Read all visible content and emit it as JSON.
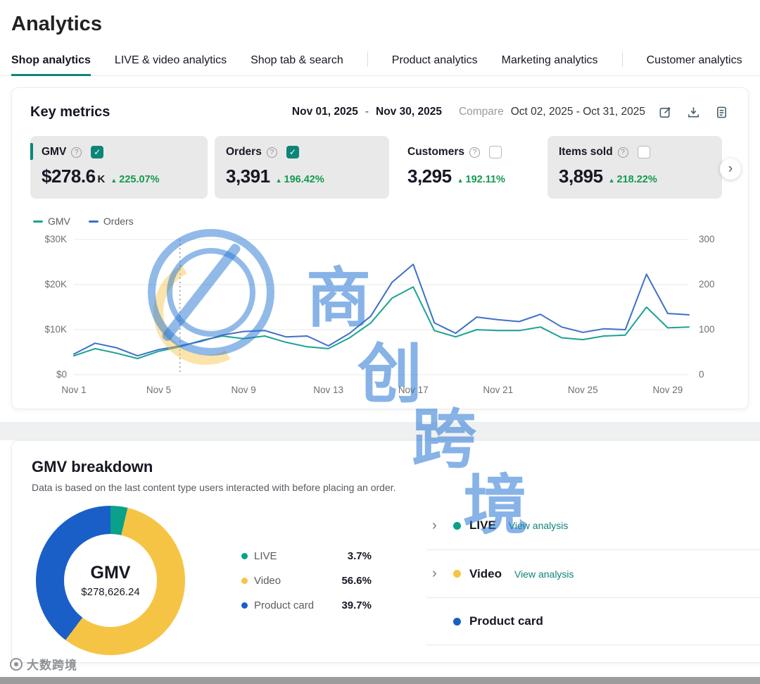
{
  "page": {
    "title": "Analytics"
  },
  "tabs": [
    {
      "label": "Shop analytics",
      "active": true
    },
    {
      "label": "LIVE & video analytics",
      "active": false
    },
    {
      "label": "Shop tab & search",
      "active": false
    },
    {
      "label": "Product analytics",
      "active": false
    },
    {
      "label": "Marketing analytics",
      "active": false
    },
    {
      "label": "Customer analytics",
      "active": false
    }
  ],
  "key_metrics": {
    "title": "Key metrics",
    "date_start": "Nov 01, 2025",
    "date_separator": "-",
    "date_end": "Nov 30, 2025",
    "compare_label": "Compare",
    "compare_range": "Oct 02, 2025 - Oct 31, 2025",
    "cards": [
      {
        "label": "GMV",
        "value": "$278.6",
        "suffix": "K",
        "delta": "225.07%",
        "checked": true
      },
      {
        "label": "Orders",
        "value": "3,391",
        "suffix": "",
        "delta": "196.42%",
        "checked": true
      },
      {
        "label": "Customers",
        "value": "3,295",
        "suffix": "",
        "delta": "192.11%",
        "checked": false
      },
      {
        "label": "Items sold",
        "value": "3,895",
        "suffix": "",
        "delta": "218.22%",
        "checked": false
      }
    ]
  },
  "chart_data": {
    "type": "line",
    "x": [
      "Nov 1",
      "Nov 2",
      "Nov 3",
      "Nov 4",
      "Nov 5",
      "Nov 6",
      "Nov 7",
      "Nov 8",
      "Nov 9",
      "Nov 10",
      "Nov 11",
      "Nov 12",
      "Nov 13",
      "Nov 14",
      "Nov 15",
      "Nov 16",
      "Nov 17",
      "Nov 18",
      "Nov 19",
      "Nov 20",
      "Nov 21",
      "Nov 22",
      "Nov 23",
      "Nov 24",
      "Nov 25",
      "Nov 26",
      "Nov 27",
      "Nov 28",
      "Nov 29",
      "Nov 30"
    ],
    "x_tick_labels": [
      "Nov 1",
      "Nov 5",
      "Nov 9",
      "Nov 13",
      "Nov 17",
      "Nov 21",
      "Nov 25",
      "Nov 29"
    ],
    "x_tick_positions": [
      0,
      4,
      8,
      12,
      16,
      20,
      24,
      28
    ],
    "series": [
      {
        "name": "GMV",
        "axis": "left",
        "color": "#1ba393",
        "unit": "$K",
        "values": [
          4.2,
          5.8,
          4.8,
          3.6,
          5.2,
          6.2,
          7.6,
          8.6,
          8.0,
          8.6,
          7.2,
          6.2,
          5.8,
          8.2,
          11.5,
          17.0,
          19.5,
          9.8,
          8.4,
          10.0,
          9.8,
          9.8,
          10.6,
          8.2,
          7.8,
          8.6,
          8.8,
          15.0,
          10.4,
          10.6
        ]
      },
      {
        "name": "Orders",
        "axis": "right",
        "color": "#3f6fca",
        "values": [
          46,
          70,
          60,
          42,
          56,
          64,
          74,
          88,
          96,
          98,
          84,
          86,
          64,
          92,
          130,
          205,
          245,
          115,
          92,
          128,
          122,
          118,
          134,
          106,
          94,
          102,
          100,
          223,
          136,
          133
        ]
      }
    ],
    "left_axis": {
      "ticks": [
        "$0",
        "$10K",
        "$20K",
        "$30K"
      ],
      "min": 0,
      "max": 30
    },
    "right_axis": {
      "ticks": [
        "0",
        "100",
        "200",
        "300"
      ],
      "min": 0,
      "max": 300
    },
    "reference_line_day_index": 5,
    "grid": "horizontal",
    "legend_position": "top-left"
  },
  "gmv_breakdown": {
    "title": "GMV breakdown",
    "subtitle": "Data is based on the last content type users interacted with before placing an order.",
    "donut_center_label": "GMV",
    "donut_center_value": "$278,626.24",
    "segments": [
      {
        "label": "LIVE",
        "percent": "3.7%",
        "value": 3.7,
        "color": "#0aa08a"
      },
      {
        "label": "Video",
        "percent": "56.6%",
        "value": 56.6,
        "color": "#f6c445"
      },
      {
        "label": "Product card",
        "percent": "39.7%",
        "value": 39.7,
        "color": "#1a5fc8"
      }
    ],
    "rows": [
      {
        "label": "LIVE",
        "link": "View analysis",
        "color": "#0aa08a"
      },
      {
        "label": "Video",
        "link": "View analysis",
        "color": "#f6c445"
      },
      {
        "label": "Product card",
        "link": "",
        "color": "#1a5fc8"
      }
    ]
  },
  "ui": {
    "up_arrow": "▲",
    "check": "✓",
    "help": "?",
    "chevron_right": "›"
  },
  "watermark": {
    "text": "商创跨境",
    "chars": [
      "商",
      "创",
      "跨",
      "境"
    ],
    "footer_brand": "大数跨境"
  },
  "colors": {
    "accent_teal": "#0e8577",
    "delta_green": "#149a4e",
    "gmv_line": "#1ba393",
    "orders_line": "#3f6fca",
    "donut_live": "#0aa08a",
    "donut_video": "#f6c445",
    "donut_product": "#1a5fc8",
    "watermark_blue": "rgba(36,116,212,0.55)"
  }
}
